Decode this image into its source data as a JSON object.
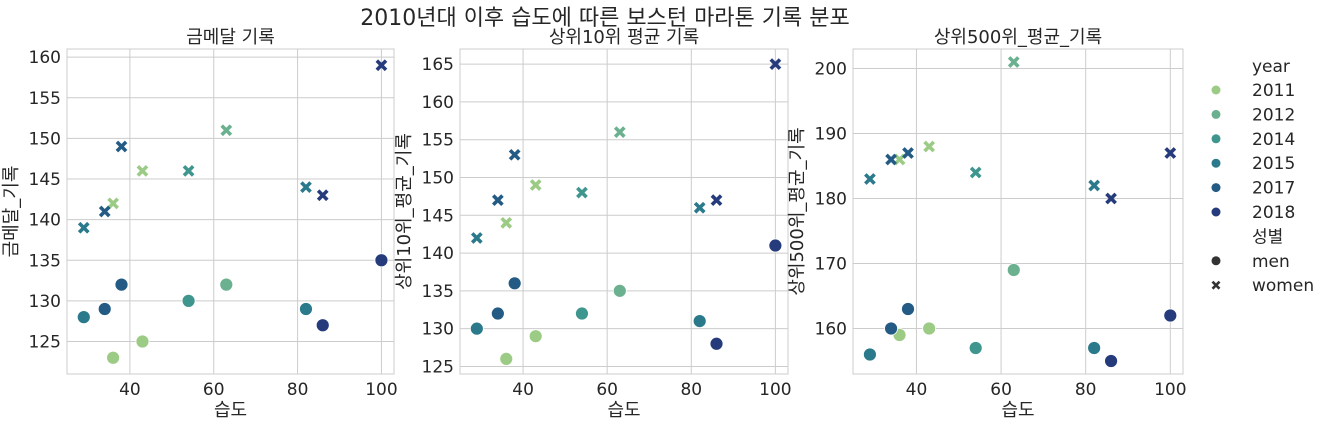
{
  "suptitle": "2010년대 이후 습도에 따른 보스턴 마라톤 기록 분포",
  "legend": {
    "hue_title": "year",
    "style_title": "성별",
    "years": [
      {
        "label": "2011",
        "color": "#9ccb86"
      },
      {
        "label": "2012",
        "color": "#6cb18f"
      },
      {
        "label": "2014",
        "color": "#3f968f"
      },
      {
        "label": "2015",
        "color": "#2a7a8c"
      },
      {
        "label": "2017",
        "color": "#235b85"
      },
      {
        "label": "2018",
        "color": "#263b7c"
      }
    ],
    "genders": [
      {
        "label": "men",
        "marker": "circle"
      },
      {
        "label": "women",
        "marker": "x"
      }
    ]
  },
  "chart_data": [
    {
      "type": "scatter",
      "title": "금메달 기록",
      "xlabel": "습도",
      "ylabel": "금메달_기록",
      "xlim": [
        25,
        103
      ],
      "ylim": [
        121,
        161
      ],
      "xticks": [
        40,
        60,
        80,
        100
      ],
      "yticks": [
        125,
        130,
        135,
        140,
        145,
        150,
        155,
        160
      ],
      "grid": true,
      "points": [
        {
          "x": 36,
          "y": 123,
          "year": "2011",
          "sex": "men"
        },
        {
          "x": 43,
          "y": 125,
          "year": "2011",
          "sex": "men"
        },
        {
          "x": 63,
          "y": 132,
          "year": "2012",
          "sex": "men"
        },
        {
          "x": 54,
          "y": 130,
          "year": "2014",
          "sex": "men"
        },
        {
          "x": 29,
          "y": 128,
          "year": "2015",
          "sex": "men"
        },
        {
          "x": 82,
          "y": 129,
          "year": "2015",
          "sex": "men"
        },
        {
          "x": 34,
          "y": 129,
          "year": "2017",
          "sex": "men"
        },
        {
          "x": 38,
          "y": 132,
          "year": "2017",
          "sex": "men"
        },
        {
          "x": 86,
          "y": 127,
          "year": "2018",
          "sex": "men"
        },
        {
          "x": 100,
          "y": 135,
          "year": "2018",
          "sex": "men"
        },
        {
          "x": 36,
          "y": 142,
          "year": "2011",
          "sex": "women"
        },
        {
          "x": 43,
          "y": 146,
          "year": "2011",
          "sex": "women"
        },
        {
          "x": 63,
          "y": 151,
          "year": "2012",
          "sex": "women"
        },
        {
          "x": 54,
          "y": 146,
          "year": "2014",
          "sex": "women"
        },
        {
          "x": 29,
          "y": 139,
          "year": "2015",
          "sex": "women"
        },
        {
          "x": 82,
          "y": 144,
          "year": "2015",
          "sex": "women"
        },
        {
          "x": 34,
          "y": 141,
          "year": "2017",
          "sex": "women"
        },
        {
          "x": 38,
          "y": 149,
          "year": "2017",
          "sex": "women"
        },
        {
          "x": 86,
          "y": 143,
          "year": "2018",
          "sex": "women"
        },
        {
          "x": 100,
          "y": 159,
          "year": "2018",
          "sex": "women"
        }
      ]
    },
    {
      "type": "scatter",
      "title": "상위10위 평균 기록",
      "xlabel": "습도",
      "ylabel": "상위10위_평균_기록",
      "xlim": [
        25,
        103
      ],
      "ylim": [
        124,
        167
      ],
      "xticks": [
        40,
        60,
        80,
        100
      ],
      "yticks": [
        125,
        130,
        135,
        140,
        145,
        150,
        155,
        160,
        165
      ],
      "grid": true,
      "points": [
        {
          "x": 36,
          "y": 126,
          "year": "2011",
          "sex": "men"
        },
        {
          "x": 43,
          "y": 129,
          "year": "2011",
          "sex": "men"
        },
        {
          "x": 63,
          "y": 135,
          "year": "2012",
          "sex": "men"
        },
        {
          "x": 54,
          "y": 132,
          "year": "2014",
          "sex": "men"
        },
        {
          "x": 29,
          "y": 130,
          "year": "2015",
          "sex": "men"
        },
        {
          "x": 82,
          "y": 131,
          "year": "2015",
          "sex": "men"
        },
        {
          "x": 34,
          "y": 132,
          "year": "2017",
          "sex": "men"
        },
        {
          "x": 38,
          "y": 136,
          "year": "2017",
          "sex": "men"
        },
        {
          "x": 86,
          "y": 128,
          "year": "2018",
          "sex": "men"
        },
        {
          "x": 100,
          "y": 141,
          "year": "2018",
          "sex": "men"
        },
        {
          "x": 36,
          "y": 144,
          "year": "2011",
          "sex": "women"
        },
        {
          "x": 43,
          "y": 149,
          "year": "2011",
          "sex": "women"
        },
        {
          "x": 63,
          "y": 156,
          "year": "2012",
          "sex": "women"
        },
        {
          "x": 54,
          "y": 148,
          "year": "2014",
          "sex": "women"
        },
        {
          "x": 29,
          "y": 142,
          "year": "2015",
          "sex": "women"
        },
        {
          "x": 82,
          "y": 146,
          "year": "2015",
          "sex": "women"
        },
        {
          "x": 34,
          "y": 147,
          "year": "2017",
          "sex": "women"
        },
        {
          "x": 38,
          "y": 153,
          "year": "2017",
          "sex": "women"
        },
        {
          "x": 86,
          "y": 147,
          "year": "2018",
          "sex": "women"
        },
        {
          "x": 100,
          "y": 165,
          "year": "2018",
          "sex": "women"
        }
      ]
    },
    {
      "type": "scatter",
      "title": "상위500위_평균_기록",
      "xlabel": "습도",
      "ylabel": "상위500위_평균_기록",
      "xlim": [
        25,
        103
      ],
      "ylim": [
        153,
        203
      ],
      "xticks": [
        40,
        60,
        80,
        100
      ],
      "yticks": [
        160,
        170,
        180,
        190,
        200
      ],
      "grid": true,
      "points": [
        {
          "x": 36,
          "y": 159,
          "year": "2011",
          "sex": "men"
        },
        {
          "x": 43,
          "y": 160,
          "year": "2011",
          "sex": "men"
        },
        {
          "x": 63,
          "y": 169,
          "year": "2012",
          "sex": "men"
        },
        {
          "x": 54,
          "y": 157,
          "year": "2014",
          "sex": "men"
        },
        {
          "x": 29,
          "y": 156,
          "year": "2015",
          "sex": "men"
        },
        {
          "x": 82,
          "y": 157,
          "year": "2015",
          "sex": "men"
        },
        {
          "x": 34,
          "y": 160,
          "year": "2017",
          "sex": "men"
        },
        {
          "x": 38,
          "y": 163,
          "year": "2017",
          "sex": "men"
        },
        {
          "x": 86,
          "y": 155,
          "year": "2018",
          "sex": "men"
        },
        {
          "x": 100,
          "y": 162,
          "year": "2018",
          "sex": "men"
        },
        {
          "x": 36,
          "y": 186,
          "year": "2011",
          "sex": "women"
        },
        {
          "x": 43,
          "y": 188,
          "year": "2011",
          "sex": "women"
        },
        {
          "x": 63,
          "y": 201,
          "year": "2012",
          "sex": "women"
        },
        {
          "x": 54,
          "y": 184,
          "year": "2014",
          "sex": "women"
        },
        {
          "x": 29,
          "y": 183,
          "year": "2015",
          "sex": "women"
        },
        {
          "x": 82,
          "y": 182,
          "year": "2015",
          "sex": "women"
        },
        {
          "x": 34,
          "y": 186,
          "year": "2017",
          "sex": "women"
        },
        {
          "x": 38,
          "y": 187,
          "year": "2017",
          "sex": "women"
        },
        {
          "x": 86,
          "y": 180,
          "year": "2018",
          "sex": "women"
        },
        {
          "x": 100,
          "y": 187,
          "year": "2018",
          "sex": "women"
        }
      ]
    }
  ]
}
